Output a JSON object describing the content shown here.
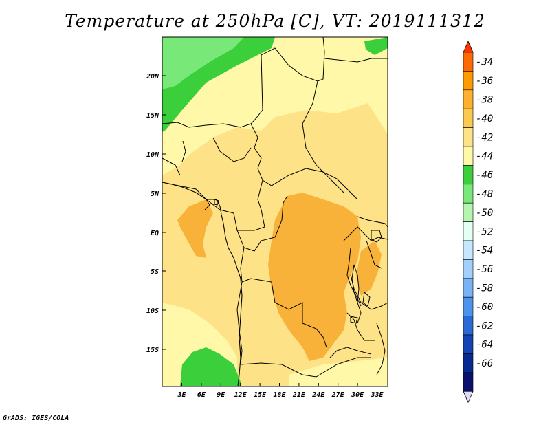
{
  "title": "Temperature at 250hPa [C], VT: 2019111312",
  "credit": "GrADS: IGES/COLA",
  "lat_labels": [
    "20N",
    "15N",
    "10N",
    "5N",
    "EQ",
    "5S",
    "10S",
    "15S"
  ],
  "lon_labels": [
    "3E",
    "6E",
    "9E",
    "12E",
    "15E",
    "18E",
    "21E",
    "24E",
    "27E",
    "30E",
    "33E"
  ],
  "colorbar": {
    "labels": [
      "-34",
      "-36",
      "-38",
      "-40",
      "-42",
      "-44",
      "-46",
      "-48",
      "-50",
      "-52",
      "-54",
      "-56",
      "-58",
      "-60",
      "-62",
      "-64",
      "-66"
    ],
    "colors": [
      "#ff6a00",
      "#ff9a00",
      "#ffb02e",
      "#fbc94e",
      "#fde288",
      "#fff8a8",
      "#3ccf3c",
      "#78e878",
      "#b4f5b0",
      "#e4fff4",
      "#c6e8ff",
      "#a2d0fa",
      "#78b4f5",
      "#4c94eb",
      "#2a6ad6",
      "#1444b4",
      "#062a92",
      "#0b0f6e"
    ],
    "top_arrow_color": "#ff3300",
    "bottom_arrow_color": "#e0dcf5"
  },
  "field_colors": {
    "c42": "#fff8a8",
    "c40": "#fde288",
    "c38": "#fbc94e",
    "c36": "#f8b23a",
    "c44": "#3ccf3c",
    "c46": "#78e878"
  }
}
